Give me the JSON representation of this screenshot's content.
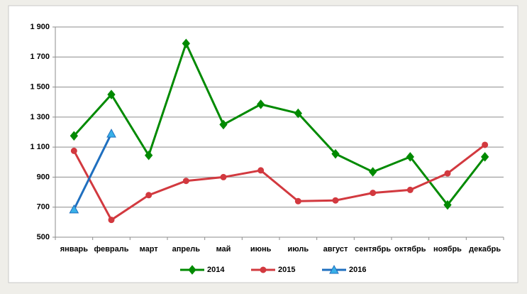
{
  "chart_data": {
    "type": "line",
    "categories": [
      "январь",
      "февраль",
      "март",
      "апрель",
      "май",
      "июнь",
      "июль",
      "август",
      "сентябрь",
      "октябрь",
      "ноябрь",
      "декабрь"
    ],
    "series": [
      {
        "name": "2014",
        "color": "#008a00",
        "values": [
          1175,
          1450,
          1045,
          1790,
          1250,
          1385,
          1325,
          1055,
          935,
          1035,
          715,
          1035
        ]
      },
      {
        "name": "2015",
        "color": "#d2393f",
        "values": [
          1075,
          615,
          780,
          875,
          900,
          945,
          740,
          745,
          795,
          815,
          925,
          1115
        ]
      },
      {
        "name": "2016",
        "color": "#1f6fbf",
        "values": [
          685,
          1190,
          null,
          null,
          null,
          null,
          null,
          null,
          null,
          null,
          null,
          null
        ]
      }
    ],
    "ylim": [
      500,
      1900
    ],
    "yticks": [
      500,
      700,
      900,
      {
        "value": 1100,
        "label": "1 100"
      },
      {
        "value": 1300,
        "label": "1 300"
      },
      {
        "value": 1500,
        "label": "1 500"
      },
      {
        "value": 1700,
        "label": "1 700"
      },
      {
        "value": 1900,
        "label": "1 900"
      }
    ],
    "grid": true
  }
}
